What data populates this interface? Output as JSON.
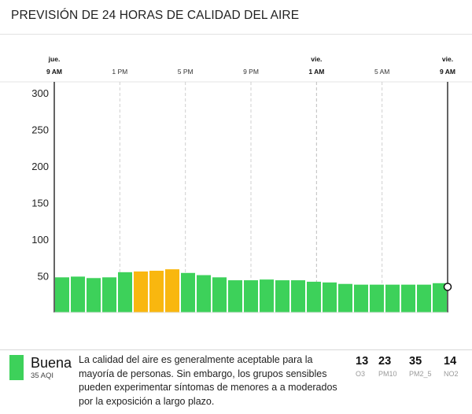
{
  "header": {
    "title": "PREVISIÓN DE 24 HORAS DE CALIDAD DEL AIRE"
  },
  "colors": {
    "good": "#3dd15a",
    "moderate": "#f9b70f",
    "grid": "#cccccc"
  },
  "chart_data": {
    "type": "bar",
    "x_labels": [
      {
        "day": "jue.",
        "hour": "9 AM",
        "bold": true
      },
      {
        "day": "",
        "hour": "1 PM",
        "bold": false
      },
      {
        "day": "",
        "hour": "5 PM",
        "bold": false
      },
      {
        "day": "",
        "hour": "9 PM",
        "bold": false
      },
      {
        "day": "vie.",
        "hour": "1 AM",
        "bold": true
      },
      {
        "day": "",
        "hour": "5 AM",
        "bold": false
      },
      {
        "day": "vie.",
        "hour": "9 AM",
        "bold": true
      }
    ],
    "yticks": [
      50,
      100,
      150,
      200,
      250,
      300
    ],
    "ylim": [
      0,
      315
    ],
    "values": [
      48,
      49,
      47,
      48,
      55,
      56,
      57,
      59,
      54,
      51,
      48,
      44,
      44,
      45,
      44,
      44,
      42,
      41,
      39,
      38,
      38,
      38,
      38,
      38,
      40
    ],
    "status": [
      "good",
      "good",
      "good",
      "good",
      "good",
      "moderate",
      "moderate",
      "moderate",
      "good",
      "good",
      "good",
      "good",
      "good",
      "good",
      "good",
      "good",
      "good",
      "good",
      "good",
      "good",
      "good",
      "good",
      "good",
      "good",
      "good"
    ],
    "current_value": 35
  },
  "footer": {
    "status": "Buena",
    "aqi": "35 AQI",
    "description": "La calidad del aire es generalmente aceptable para la mayoría de personas. Sin embargo, los grupos sensibles pueden experimentar síntomas de menores a a moderados por la exposición a largo plazo.",
    "pollutants": [
      {
        "value": "13",
        "name": "O3"
      },
      {
        "value": "23",
        "name": "PM10"
      },
      {
        "value": "35",
        "name": "PM2_5"
      },
      {
        "value": "14",
        "name": "NO2"
      }
    ]
  }
}
